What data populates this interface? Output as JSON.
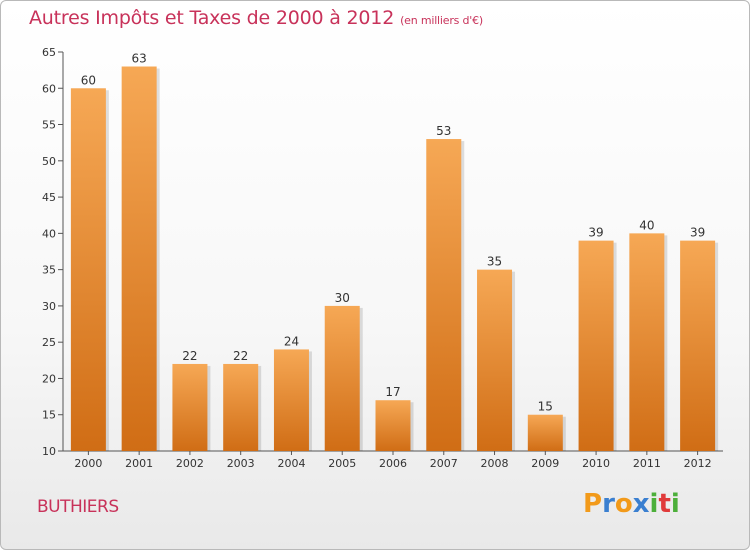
{
  "title": "Autres Impôts et Taxes de 2000 à 2012",
  "subtitle": "(en milliers d'€)",
  "commune": "BUTHIERS",
  "logo": {
    "letters": [
      "P",
      "r",
      "o",
      "x",
      "i",
      "t",
      "i"
    ],
    "colors": [
      "#f29a1a",
      "#3a7fd0",
      "#f29a1a",
      "#3a7fd0",
      "#4caf3a",
      "#e03a3a",
      "#4caf3a"
    ]
  },
  "colors": {
    "bar_top": "#f6a855",
    "bar_bottom": "#d06d15",
    "text_accent": "#c8325a"
  },
  "chart_data": {
    "type": "bar",
    "title": "Autres Impôts et Taxes de 2000 à 2012",
    "subtitle": "(en milliers d'€)",
    "xlabel": "",
    "ylabel": "",
    "categories": [
      "2000",
      "2001",
      "2002",
      "2003",
      "2004",
      "2005",
      "2006",
      "2007",
      "2008",
      "2009",
      "2010",
      "2011",
      "2012"
    ],
    "values": [
      60,
      63,
      22,
      22,
      24,
      30,
      17,
      53,
      35,
      15,
      39,
      40,
      39
    ],
    "ylim": [
      10,
      65
    ],
    "yticks": [
      10,
      15,
      20,
      25,
      30,
      35,
      40,
      45,
      50,
      55,
      60,
      65
    ],
    "grid": false,
    "data_labels": true
  }
}
